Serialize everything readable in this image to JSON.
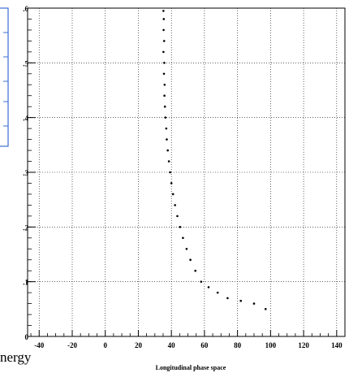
{
  "chart_data": {
    "type": "scatter",
    "title": "",
    "xlabel": "Longitudinal phase space",
    "ylabel": "",
    "xlim": [
      -47,
      145
    ],
    "ylim": [
      0,
      0.6
    ],
    "x_ticks": [
      -40,
      -20,
      0,
      20,
      40,
      60,
      80,
      100,
      120,
      140
    ],
    "x_tick_labels": [
      "-40",
      "-20",
      "0",
      "20",
      "40",
      "60",
      "80",
      "100",
      "120",
      "140"
    ],
    "y_ticks": [
      0,
      0.1,
      0.2,
      0.3,
      0.4,
      0.5,
      0.6
    ],
    "y_tick_labels": [
      "0",
      ".1",
      ".2",
      ".3",
      ".4",
      ".5",
      ".6"
    ],
    "grid": true,
    "grid_style": "dotted",
    "marker_color": "#000000",
    "series": [
      {
        "points": [
          [
            35.2,
            0.595
          ],
          [
            35.4,
            0.58
          ],
          [
            35.3,
            0.56
          ],
          [
            35.6,
            0.54
          ],
          [
            35.2,
            0.52
          ],
          [
            35.7,
            0.5
          ],
          [
            35.5,
            0.48
          ],
          [
            35.9,
            0.46
          ],
          [
            35.8,
            0.44
          ],
          [
            36.1,
            0.42
          ],
          [
            36.4,
            0.4
          ],
          [
            36.9,
            0.38
          ],
          [
            37.2,
            0.36
          ],
          [
            37.8,
            0.34
          ],
          [
            38.5,
            0.32
          ],
          [
            39.2,
            0.3
          ],
          [
            40.0,
            0.28
          ],
          [
            41.0,
            0.26
          ],
          [
            42.2,
            0.24
          ],
          [
            43.6,
            0.22
          ],
          [
            45.2,
            0.2
          ],
          [
            47.0,
            0.18
          ],
          [
            49.2,
            0.16
          ],
          [
            51.5,
            0.14
          ],
          [
            54.5,
            0.12
          ],
          [
            58.0,
            0.1
          ],
          [
            62.5,
            0.09
          ],
          [
            68.0,
            0.08
          ],
          [
            74.0,
            0.07
          ],
          [
            82.0,
            0.065
          ],
          [
            90.0,
            0.06
          ],
          [
            97.0,
            0.05
          ]
        ]
      }
    ]
  },
  "cut_label": "nergy"
}
